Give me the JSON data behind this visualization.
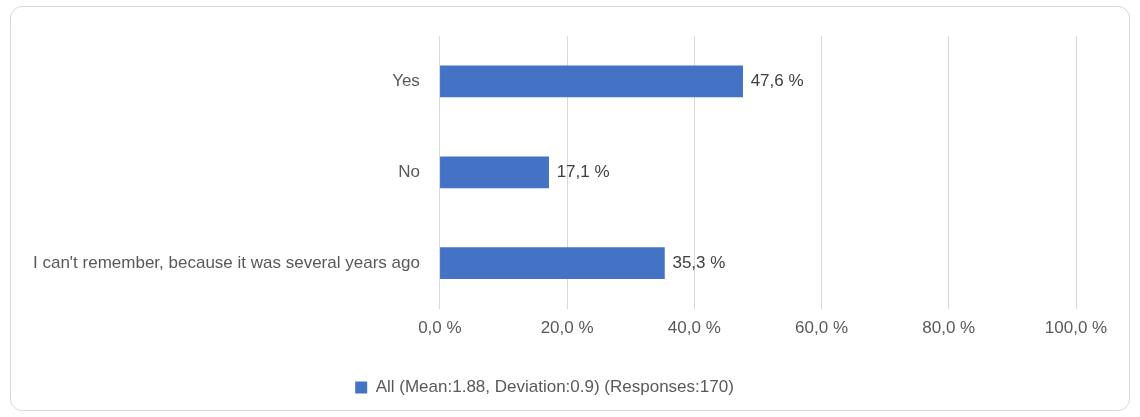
{
  "chart_data": {
    "type": "bar",
    "orientation": "horizontal",
    "categories": [
      "Yes",
      "No",
      "I can't remember, because it was several years ago"
    ],
    "series": [
      {
        "name": "All (Mean:1.88, Deviation:0.9) (Responses:170)",
        "color": "#4472c4",
        "values": [
          47.6,
          17.1,
          35.3
        ],
        "value_labels": [
          "47,6 %",
          "17,1 %",
          "35,3 %"
        ]
      }
    ],
    "xlim": [
      0,
      100
    ],
    "xticks": [
      {
        "value": 0,
        "label": "0,0 %"
      },
      {
        "value": 20,
        "label": "20,0 %"
      },
      {
        "value": 40,
        "label": "40,0 %"
      },
      {
        "value": 60,
        "label": "60,0 %"
      },
      {
        "value": 80,
        "label": "80,0 %"
      },
      {
        "value": 100,
        "label": "100,0 %"
      }
    ],
    "grid": "x",
    "legend": "bottom"
  }
}
